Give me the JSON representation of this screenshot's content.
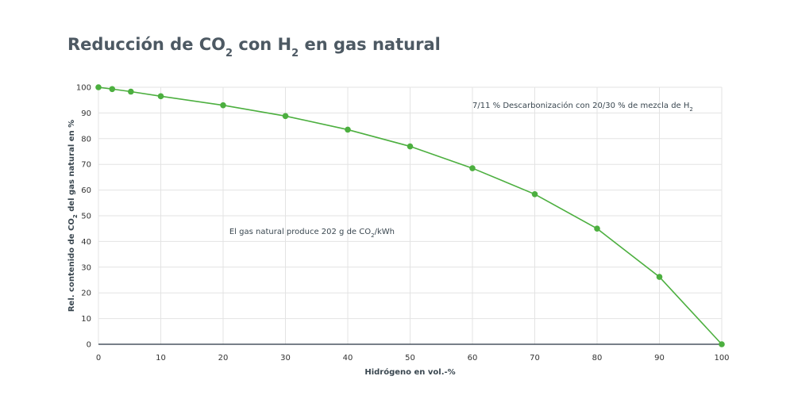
{
  "chart_data": {
    "type": "line",
    "title": {
      "parts": [
        {
          "text": "Reducción de CO"
        },
        {
          "text": "2",
          "sub": true
        },
        {
          "text": " con H"
        },
        {
          "text": "2",
          "sub": true
        },
        {
          "text": " en gas natural"
        }
      ]
    },
    "xlabel": "Hidrógeno en vol.-%",
    "ylabel": {
      "parts": [
        {
          "text": "Rel. contenido de CO"
        },
        {
          "text": "2",
          "sub": true
        },
        {
          "text": " del gas natural en %"
        }
      ]
    },
    "xlim": [
      0,
      100
    ],
    "ylim": [
      0,
      100
    ],
    "xticks": [
      0,
      10,
      20,
      30,
      40,
      50,
      60,
      70,
      80,
      90,
      100
    ],
    "yticks": [
      0,
      10,
      20,
      30,
      40,
      50,
      60,
      70,
      80,
      90,
      100
    ],
    "grid": true,
    "series": [
      {
        "color": "#4caf3f",
        "x": [
          0,
          2.2,
          5.2,
          10,
          20,
          30,
          40,
          50,
          60,
          70,
          80,
          90,
          100
        ],
        "y": [
          100,
          99.3,
          98.3,
          96.5,
          93,
          88.8,
          83.5,
          77,
          68.5,
          58.4,
          45,
          26.2,
          0
        ]
      }
    ],
    "annotations": [
      {
        "id": "decarb",
        "x": 60,
        "y": 93,
        "anchor": "start",
        "parts": [
          {
            "text": "7/11 % Descarbonización con 20/30 % de mezcla de H"
          },
          {
            "text": "2",
            "sub": true
          }
        ]
      },
      {
        "id": "emission",
        "x": 21,
        "y": 44,
        "anchor": "start",
        "parts": [
          {
            "text": "El gas natural produce 202 g de CO"
          },
          {
            "text": "2",
            "sub": true
          },
          {
            "text": "/kWh"
          }
        ]
      }
    ]
  }
}
